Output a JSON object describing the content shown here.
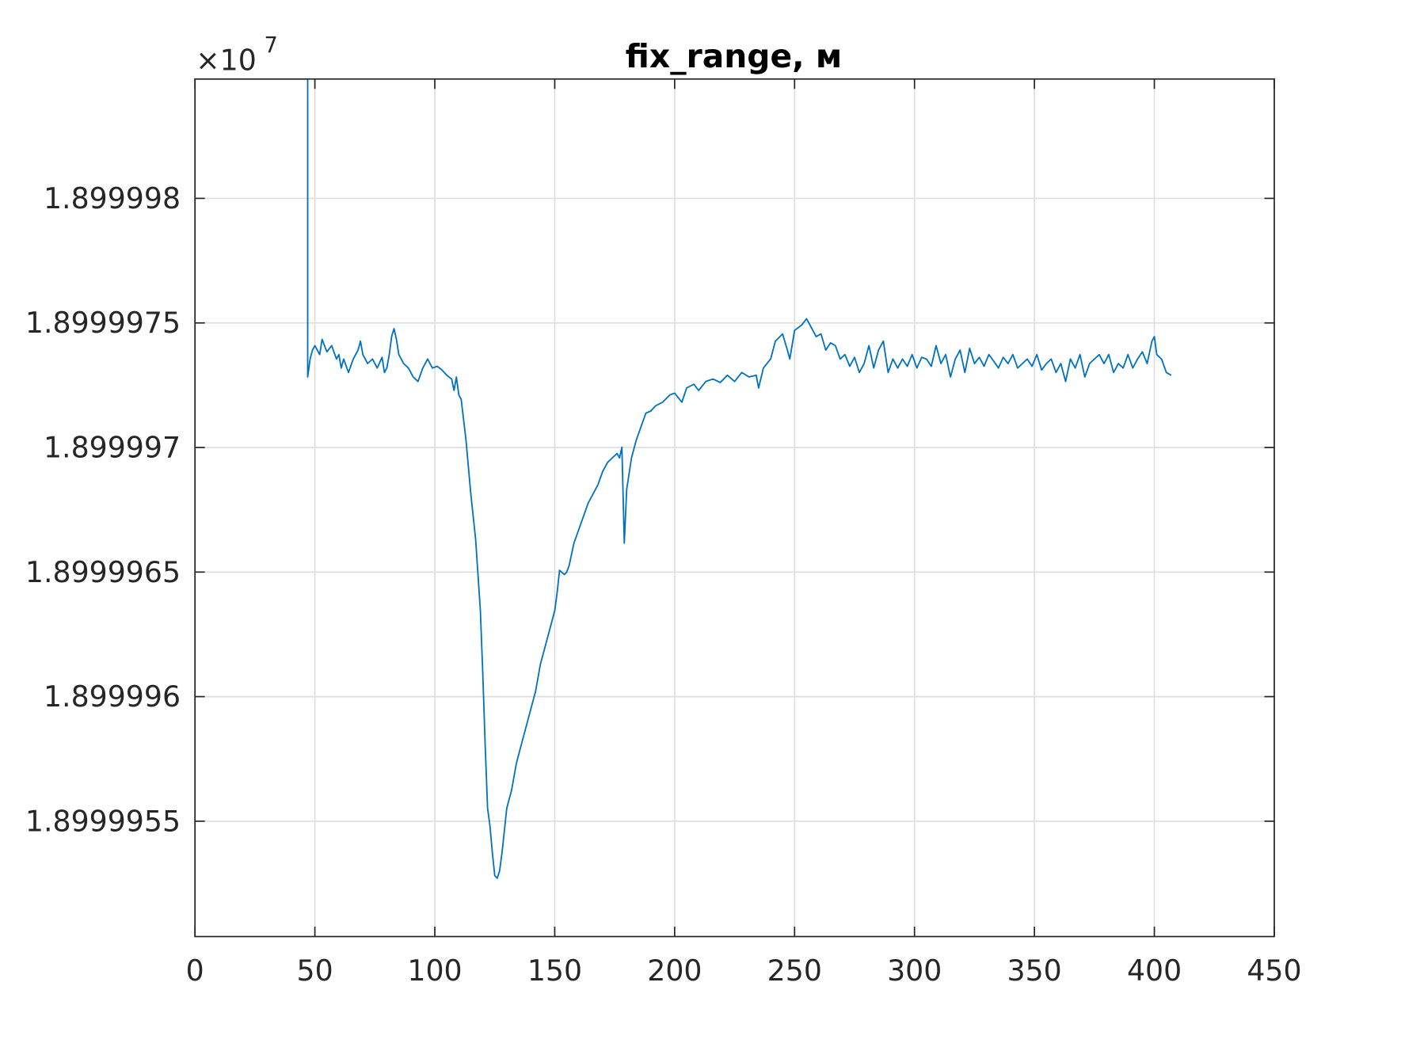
{
  "chart_data": {
    "type": "line",
    "title": "fix_range, м",
    "y_multiplier": "×10",
    "y_multiplier_exponent": "7",
    "color": "#0072bd",
    "grid": true,
    "xlim": [
      0,
      450
    ],
    "xticks": [
      0,
      50,
      100,
      150,
      200,
      250,
      300,
      350,
      400,
      450
    ],
    "ylim": [
      1.899995037,
      1.899998479
    ],
    "yticks": [
      1.8999955,
      1.899996,
      1.8999965,
      1.899997,
      1.8999975,
      1.899998
    ],
    "x": [
      0,
      0,
      47,
      47,
      48,
      49,
      50,
      52,
      53,
      55,
      57,
      59,
      60,
      61,
      62,
      64,
      66,
      68,
      69,
      70,
      72,
      74,
      76,
      78,
      79,
      80,
      81,
      82,
      83,
      84,
      85,
      87,
      89,
      91,
      93,
      95,
      97,
      99,
      101,
      103,
      105,
      107,
      108,
      109,
      110,
      111,
      113,
      115,
      117,
      119,
      120,
      121,
      122,
      123,
      124,
      125,
      126,
      127,
      128,
      130,
      132,
      134,
      136,
      138,
      140,
      142,
      144,
      146,
      148,
      150,
      151,
      152,
      154,
      155,
      156,
      158,
      160,
      162,
      164,
      166,
      168,
      170,
      172,
      174,
      176,
      177,
      178,
      179,
      180,
      182,
      184,
      186,
      188,
      190,
      192,
      195,
      198,
      200,
      203,
      205,
      208,
      210,
      213,
      216,
      219,
      222,
      225,
      228,
      231,
      234,
      235,
      237,
      240,
      242,
      245,
      247,
      248,
      250,
      253,
      255,
      257,
      259,
      261,
      263,
      265,
      267,
      269,
      271,
      273,
      275,
      277,
      279,
      281,
      283,
      285,
      287,
      289,
      291,
      293,
      295,
      297,
      299,
      301,
      303,
      305,
      307,
      309,
      311,
      313,
      315,
      317,
      319,
      321,
      323,
      325,
      327,
      329,
      331,
      333,
      335,
      337,
      339,
      341,
      343,
      345,
      347,
      349,
      351,
      353,
      355,
      357,
      359,
      361,
      363,
      365,
      367,
      369,
      371,
      373,
      375,
      377,
      379,
      381,
      383,
      385,
      387,
      389,
      391,
      393,
      395,
      397,
      399,
      400,
      401,
      403,
      405,
      407
    ],
    "values": [
      1.899995037,
      1.899998479,
      1.899998479,
      1.899997283,
      1.899997355,
      1.899997391,
      1.899997409,
      1.899997373,
      1.899997434,
      1.899997384,
      1.899997409,
      1.899997355,
      1.899997373,
      1.899997319,
      1.899997355,
      1.899997301,
      1.899997355,
      1.899997391,
      1.899997427,
      1.899997373,
      1.899997337,
      1.899997355,
      1.899997319,
      1.899997362,
      1.899997301,
      1.899997319,
      1.899997373,
      1.899997445,
      1.899997477,
      1.899997434,
      1.899997373,
      1.899997337,
      1.899997319,
      1.899997283,
      1.899997265,
      1.899997319,
      1.899997355,
      1.899997319,
      1.899997326,
      1.899997311,
      1.89999729,
      1.899997275,
      1.899997229,
      1.899997283,
      1.899997211,
      1.899997193,
      1.89999703,
      1.899996814,
      1.899996634,
      1.899996345,
      1.899996093,
      1.899995805,
      1.899995552,
      1.89999548,
      1.899995372,
      1.899995282,
      1.899995271,
      1.8999953,
      1.899995372,
      1.899995552,
      1.899995624,
      1.899995732,
      1.899995805,
      1.899995877,
      1.899995949,
      1.899996021,
      1.899996129,
      1.899996201,
      1.899996273,
      1.899996345,
      1.899996417,
      1.899996507,
      1.89999649,
      1.8999965,
      1.899996526,
      1.899996616,
      1.89999667,
      1.899996724,
      1.899996778,
      1.899996814,
      1.89999685,
      1.899996904,
      1.89999694,
      1.899996958,
      1.899996976,
      1.899996958,
      1.899997001,
      1.899996616,
      1.899996832,
      1.899996958,
      1.89999703,
      1.899997084,
      1.899997138,
      1.899997146,
      1.899997167,
      1.899997182,
      1.899997211,
      1.899997218,
      1.899997182,
      1.899997239,
      1.899997254,
      1.899997229,
      1.899997265,
      1.899997275,
      1.899997261,
      1.89999729,
      1.899997265,
      1.899997301,
      1.899997283,
      1.89999729,
      1.899997239,
      1.899997319,
      1.899997355,
      1.899997427,
      1.899997456,
      1.899997391,
      1.899997355,
      1.89999747,
      1.899997492,
      1.899997517,
      1.899997481,
      1.899997445,
      1.899997456,
      1.899997391,
      1.89999742,
      1.899997409,
      1.899997355,
      1.899997373,
      1.899997326,
      1.899997362,
      1.899997301,
      1.899997337,
      1.899997409,
      1.899997319,
      1.899997391,
      1.899997427,
      1.899997301,
      1.899997355,
      1.899997319,
      1.899997355,
      1.899997326,
      1.899997373,
      1.899997319,
      1.899997362,
      1.899997355,
      1.899997326,
      1.899997409,
      1.899997337,
      1.899997373,
      1.899997283,
      1.899997355,
      1.899997391,
      1.899997301,
      1.899997398,
      1.899997337,
      1.899997362,
      1.899997326,
      1.899997373,
      1.899997347,
      1.899997319,
      1.899997362,
      1.899997337,
      1.899997373,
      1.899997319,
      1.899997337,
      1.899997355,
      1.899997326,
      1.899997373,
      1.899997311,
      1.899997337,
      1.899997355,
      1.899997301,
      1.899997337,
      1.899997265,
      1.899997355,
      1.899997319,
      1.899997373,
      1.899997283,
      1.899997337,
      1.899997355,
      1.899997373,
      1.899997337,
      1.899997373,
      1.899997301,
      1.899997337,
      1.899997319,
      1.899997373,
      1.899997319,
      1.899997355,
      1.899997384,
      1.899997337,
      1.899997427,
      1.899997445,
      1.899997373,
      1.899997355,
      1.899997301,
      1.89999729
    ]
  }
}
